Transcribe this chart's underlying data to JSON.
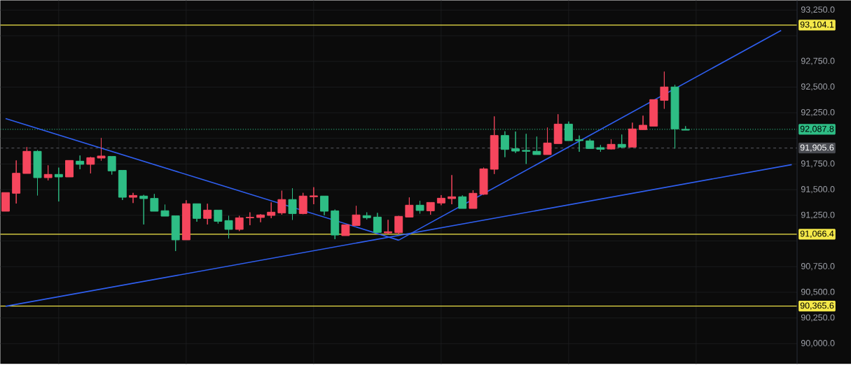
{
  "chart_data": {
    "type": "candlestick",
    "categories": [
      null,
      null,
      null,
      null,
      null,
      null,
      null,
      null,
      null,
      null,
      null,
      null,
      null,
      null,
      null,
      null,
      null,
      null,
      null,
      null,
      null,
      null,
      null,
      null,
      null,
      null,
      null,
      null,
      null,
      null,
      null,
      null,
      null,
      null,
      null,
      null,
      null,
      null,
      null,
      null,
      null,
      null,
      null,
      null,
      null,
      null,
      null,
      null,
      null,
      null,
      null,
      null,
      null,
      null,
      null,
      null,
      null,
      null,
      null,
      null,
      null,
      null,
      null,
      null,
      null,
      null,
      null,
      null,
      null,
      null,
      null,
      null,
      null,
      null,
      null
    ],
    "ohlc": [
      [
        91472,
        91472,
        91290,
        91290
      ],
      [
        91660,
        91785,
        91365,
        91465
      ],
      [
        91874,
        91915,
        91658,
        91658
      ],
      [
        91617,
        91885,
        91444,
        91874
      ],
      [
        91649,
        91737,
        91590,
        91617
      ],
      [
        91624,
        91715,
        91385,
        91649
      ],
      [
        91785,
        91785,
        91624,
        91624
      ],
      [
        91747,
        91833,
        91699,
        91778
      ],
      [
        91812,
        91819,
        91658,
        91747
      ],
      [
        91828,
        92003,
        91783,
        91808
      ],
      [
        91683,
        91824,
        91647,
        91824
      ],
      [
        91426,
        91688,
        91399,
        91688
      ],
      [
        91444,
        91469,
        91370,
        91426
      ],
      [
        91413,
        91449,
        91161,
        91438
      ],
      [
        91290,
        91458,
        91290,
        91415
      ],
      [
        91242,
        91354,
        91242,
        91295
      ],
      [
        91011,
        91245,
        90902,
        91245
      ],
      [
        91363,
        91397,
        91011,
        91011
      ],
      [
        91220,
        91363,
        91188,
        91363
      ],
      [
        91301,
        91363,
        91161,
        91220
      ],
      [
        91192,
        91301,
        91170,
        91301
      ],
      [
        91113,
        91245,
        91024,
        91199
      ],
      [
        91226,
        91245,
        91097,
        91113
      ],
      [
        91231,
        91279,
        91154,
        91226
      ],
      [
        91254,
        91261,
        91183,
        91229
      ],
      [
        91281,
        91376,
        91222,
        91249
      ],
      [
        91404,
        91490,
        91256,
        91274
      ],
      [
        91267,
        91513,
        91206,
        91404
      ],
      [
        91438,
        91469,
        91261,
        91267
      ],
      [
        91440,
        91524,
        91358,
        91431
      ],
      [
        91290,
        91438,
        91251,
        91438
      ],
      [
        91058,
        91306,
        91018,
        91294
      ],
      [
        91158,
        91158,
        91052,
        91052
      ],
      [
        91254,
        91342,
        91151,
        91151
      ],
      [
        91227,
        91279,
        91210,
        91247
      ],
      [
        91083,
        91274,
        91083,
        91233
      ],
      [
        91090,
        91206,
        91070,
        91079
      ],
      [
        91240,
        91245,
        91067,
        91081
      ],
      [
        91349,
        91424,
        91233,
        91233
      ],
      [
        91297,
        91392,
        91267,
        91349
      ],
      [
        91376,
        91376,
        91256,
        91294
      ],
      [
        91417,
        91447,
        91349,
        91370
      ],
      [
        91431,
        91642,
        91358,
        91413
      ],
      [
        91317,
        91444,
        91317,
        91431
      ],
      [
        91465,
        91494,
        91317,
        91317
      ],
      [
        91703,
        91715,
        91450,
        91455
      ],
      [
        92028,
        92214,
        91653,
        91699
      ],
      [
        91892,
        92069,
        91817,
        92028
      ],
      [
        91876,
        92067,
        91858,
        91899
      ],
      [
        91874,
        92044,
        91751,
        91883
      ],
      [
        91842,
        92017,
        91842,
        91874
      ],
      [
        91955,
        92105,
        91842,
        91842
      ],
      [
        92139,
        92235,
        91949,
        91949
      ],
      [
        91978,
        92164,
        91978,
        92139
      ],
      [
        91978,
        92028,
        91869,
        91987
      ],
      [
        91901,
        91994,
        91901,
        91976
      ],
      [
        91894,
        91935,
        91869,
        91910
      ],
      [
        91942,
        91990,
        91892,
        91896
      ],
      [
        91915,
        92037,
        91903,
        91942
      ],
      [
        92092,
        92153,
        91915,
        91915
      ],
      [
        92128,
        92221,
        92085,
        92085
      ],
      [
        92378,
        92378,
        92119,
        92119
      ],
      [
        92501,
        92650,
        92289,
        92371
      ],
      [
        92092,
        92521,
        91901,
        92501
      ],
      [
        92080,
        92119,
        92080,
        92088
      ],
      null,
      null,
      null,
      null,
      null,
      null,
      null,
      null,
      null,
      null
    ],
    "colors": [
      "#f6465d",
      "#f6465d",
      "#f6465d",
      "#2ebd85",
      "#f6465d",
      "#2ebd85",
      "#f6465d",
      "#2ebd85",
      "#f6465d",
      "#f6465d",
      "#2ebd85",
      "#2ebd85",
      "#f6465d",
      "#2ebd85",
      "#2ebd85",
      "#2ebd85",
      "#2ebd85",
      "#f6465d",
      "#2ebd85",
      "#f6465d",
      "#2ebd85",
      "#2ebd85",
      "#f6465d",
      "#f6465d",
      "#f6465d",
      "#f6465d",
      "#f6465d",
      "#2ebd85",
      "#f6465d",
      "#f6465d",
      "#2ebd85",
      "#2ebd85",
      "#f6465d",
      "#f6465d",
      "#2ebd85",
      "#2ebd85",
      "#f6465d",
      "#f6465d",
      "#f6465d",
      "#2ebd85",
      "#f6465d",
      "#f6465d",
      "#f6465d",
      "#2ebd85",
      "#f6465d",
      "#f6465d",
      "#f6465d",
      "#2ebd85",
      "#2ebd85",
      "#2ebd85",
      "#2ebd85",
      "#f6465d",
      "#f6465d",
      "#2ebd85",
      "#2ebd85",
      "#2ebd85",
      "#2ebd85",
      "#f6465d",
      "#2ebd85",
      "#f6465d",
      "#f6465d",
      "#f6465d",
      "#f6465d",
      "#2ebd85",
      "#2ebd85",
      null,
      null,
      null,
      null,
      null,
      null,
      null,
      null,
      null,
      null
    ],
    "series": [
      {
        "type": "line",
        "color": "#2f5ff0",
        "values": [
          92193,
          null,
          null,
          null,
          null,
          null,
          null,
          null,
          null,
          null,
          null,
          null,
          null,
          null,
          null,
          null,
          null,
          null,
          null,
          null,
          null,
          null,
          null,
          null,
          null,
          null,
          null,
          null,
          null,
          null,
          null,
          null,
          null,
          null,
          null,
          null,
          null,
          91008,
          null,
          null,
          null,
          null,
          null,
          null,
          null,
          null,
          null,
          null,
          null,
          null,
          null,
          null,
          null,
          null,
          null,
          null,
          null,
          null,
          null,
          null,
          null,
          null,
          null,
          null,
          null,
          null,
          null,
          null,
          null,
          null,
          null,
          null,
          null,
          null,
          null
        ]
      },
      {
        "type": "line",
        "color": "#2f5ff0",
        "values": [
          null,
          null,
          null,
          null,
          null,
          null,
          null,
          null,
          null,
          null,
          null,
          null,
          null,
          null,
          null,
          null,
          null,
          null,
          null,
          null,
          null,
          null,
          null,
          null,
          null,
          null,
          null,
          null,
          null,
          null,
          null,
          null,
          null,
          null,
          null,
          null,
          null,
          91008,
          null,
          null,
          null,
          null,
          null,
          null,
          null,
          null,
          null,
          null,
          null,
          null,
          null,
          null,
          null,
          null,
          null,
          null,
          null,
          null,
          null,
          null,
          null,
          null,
          null,
          null,
          null,
          null,
          null,
          null,
          null,
          null,
          null,
          null,
          null,
          93052,
          null
        ]
      },
      {
        "type": "line",
        "color": "#2f5ff0",
        "values": [
          90364,
          null,
          null,
          null,
          null,
          null,
          null,
          null,
          null,
          null,
          null,
          null,
          null,
          null,
          null,
          null,
          null,
          null,
          null,
          null,
          null,
          null,
          null,
          null,
          null,
          null,
          null,
          null,
          null,
          null,
          null,
          null,
          null,
          null,
          null,
          null,
          null,
          null,
          null,
          null,
          null,
          null,
          null,
          null,
          null,
          null,
          null,
          null,
          null,
          null,
          null,
          null,
          null,
          null,
          null,
          null,
          null,
          null,
          null,
          null,
          null,
          null,
          null,
          null,
          null,
          null,
          null,
          null,
          null,
          null,
          null,
          null,
          null,
          null,
          91744
        ]
      }
    ],
    "ylim": [
      89802,
      93345
    ],
    "yticks": [
      {
        "value": 90000,
        "label": "90,000.0"
      },
      {
        "value": 90250,
        "label": "90,250.0"
      },
      {
        "value": 90500,
        "label": "90,500.0"
      },
      {
        "value": 90750,
        "label": "90,750.0"
      },
      {
        "value": 91000,
        "label": null
      },
      {
        "value": 91250,
        "label": "91,250.0"
      },
      {
        "value": 91500,
        "label": "91,500.0"
      },
      {
        "value": 91750,
        "label": "91,750.0"
      },
      {
        "value": 92000,
        "label": null
      },
      {
        "value": 92250,
        "label": "92,250.0"
      },
      {
        "value": 92500,
        "label": "92,500.0"
      },
      {
        "value": 92750,
        "label": "92,750.0"
      },
      {
        "value": 93000,
        "label": null
      },
      {
        "value": 93250,
        "label": "93,250.0"
      }
    ],
    "tick_labels": "y",
    "grid": true,
    "ref_lines": [
      {
        "axis": "y",
        "value": 93104.1,
        "label": "93,104.1",
        "color": "#f5e94a",
        "line_style": "solid"
      },
      {
        "axis": "y",
        "value": 91066.4,
        "label": "91,066.4",
        "color": "#f5e94a",
        "line_style": "solid"
      },
      {
        "axis": "y",
        "value": 90365.6,
        "label": "90,365.6",
        "color": "#f5e94a",
        "line_style": "solid"
      },
      {
        "axis": "y",
        "value": 92087.8,
        "label": "92,087.8",
        "color": "#2ebd85",
        "line_style": "dotted"
      },
      {
        "axis": "y",
        "value": 91905.6,
        "label": "91,905.6",
        "color": "#4a4c52",
        "line_style": "dashed"
      }
    ]
  }
}
